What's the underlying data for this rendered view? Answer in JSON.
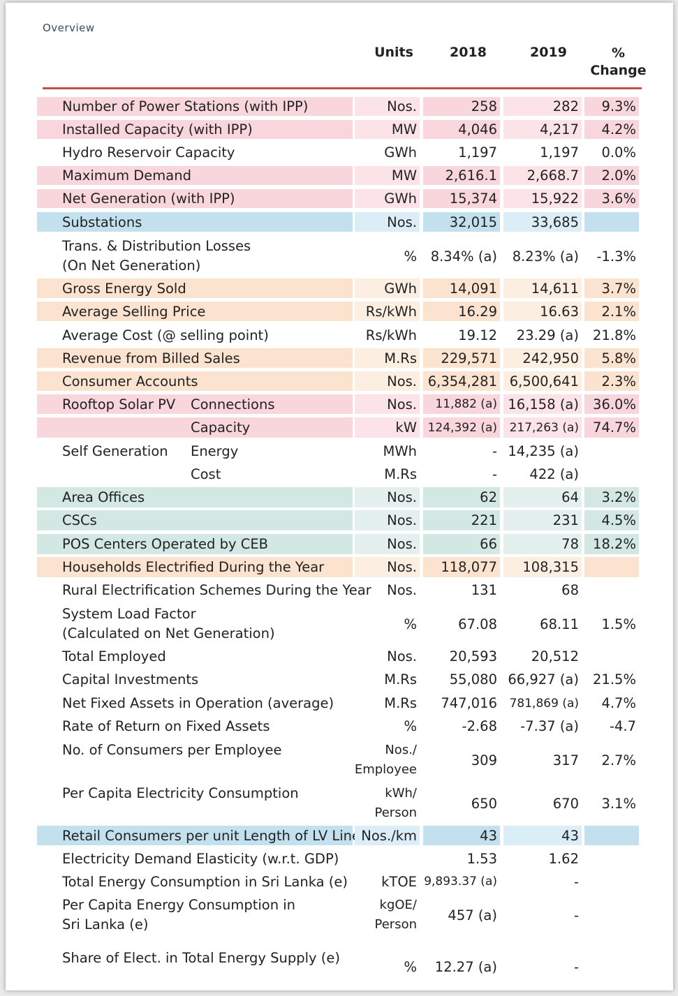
{
  "section_label": "Overview",
  "headers": {
    "units": "Units",
    "y2018": "2018",
    "y2019": "2019",
    "pct_line1": "%",
    "pct_line2": "Change"
  },
  "colors": {
    "pink": "#f9d6dc",
    "pink_light": "#fbe3e7",
    "blue": "#c3e0ee",
    "blue_light": "#dbeef7",
    "peach": "#fbe3cf",
    "peach_light": "#fdeee2",
    "teal": "#d3e7e3",
    "teal_light": "#e3f0ee",
    "rule": "#c0504d"
  },
  "rows": [
    {
      "label": "Number of Power Stations (with IPP)",
      "units": "Nos.",
      "v2018": "258",
      "v2019": "282",
      "pct": "9.3%"
    },
    {
      "label": "Installed Capacity (with IPP)",
      "units": "MW",
      "v2018": "4,046",
      "v2019": "4,217",
      "pct": "4.2%"
    },
    {
      "label": "Hydro Reservoir Capacity",
      "units": "GWh",
      "v2018": "1,197",
      "v2019": "1,197",
      "pct": "0.0%"
    },
    {
      "label": "Maximum Demand",
      "units": "MW",
      "v2018": "2,616.1",
      "v2019": "2,668.7",
      "pct": "2.0%"
    },
    {
      "label": "Net Generation (with IPP)",
      "units": "GWh",
      "v2018": "15,374",
      "v2019": "15,922",
      "pct": "3.6%"
    },
    {
      "label": "Substations",
      "units": "Nos.",
      "v2018": "32,015",
      "v2019": "33,685",
      "pct": ""
    },
    {
      "label": "Trans. & Distribution Losses",
      "label2": "(On Net Generation)",
      "units": "%",
      "v2018": "8.34% (a)",
      "v2019": "8.23% (a)",
      "pct": "-1.3%"
    },
    {
      "label": "Gross Energy Sold",
      "units": "GWh",
      "v2018": "14,091",
      "v2019": "14,611",
      "pct": "3.7%"
    },
    {
      "label": "Average Selling Price",
      "units": "Rs/kWh",
      "v2018": "16.29",
      "v2019": "16.63",
      "pct": "2.1%"
    },
    {
      "label": "Average Cost (@ selling point)",
      "units": "Rs/kWh",
      "v2018": "19.12",
      "v2019": "23.29 (a)",
      "pct": "21.8%"
    },
    {
      "label": "Revenue from Billed Sales",
      "units": "M.Rs",
      "v2018": "229,571",
      "v2019": "242,950",
      "pct": "5.8%"
    },
    {
      "label": "Consumer Accounts",
      "units": "Nos.",
      "v2018": "6,354,281",
      "v2019": "6,500,641",
      "pct": "2.3%"
    },
    {
      "label": "Rooftop Solar PV",
      "sub": "Connections",
      "units": "Nos.",
      "v2018": "11,882 (a)",
      "v2019": "16,158 (a)",
      "pct": "36.0%"
    },
    {
      "label": "",
      "sub": "Capacity",
      "units": "kW",
      "v2018": "124,392 (a)",
      "v2019": "217,263 (a)",
      "pct": "74.7%"
    },
    {
      "label": "Self Generation",
      "sub": "Energy",
      "units": "MWh",
      "v2018": "-",
      "v2019": "14,235 (a)",
      "pct": ""
    },
    {
      "label": "",
      "sub": "Cost",
      "units": "M.Rs",
      "v2018": "-",
      "v2019": "422 (a)",
      "pct": ""
    },
    {
      "label": "Area Offices",
      "units": "Nos.",
      "v2018": "62",
      "v2019": "64",
      "pct": "3.2%"
    },
    {
      "label": "CSCs",
      "units": "Nos.",
      "v2018": "221",
      "v2019": "231",
      "pct": "4.5%"
    },
    {
      "label": "POS Centers Operated by CEB",
      "units": "Nos.",
      "v2018": "66",
      "v2019": "78",
      "pct": "18.2%"
    },
    {
      "label": "Households Electrified During the Year",
      "units": "Nos.",
      "v2018": "118,077",
      "v2019": "108,315",
      "pct": ""
    },
    {
      "label": "Rural Electrification Schemes During the Year",
      "units": "Nos.",
      "v2018": "131",
      "v2019": "68",
      "pct": ""
    },
    {
      "label": "System Load Factor",
      "label2": "(Calculated on Net Generation)",
      "units": "%",
      "v2018": "67.08",
      "v2019": "68.11",
      "pct": "1.5%"
    },
    {
      "label": "Total Employed",
      "units": "Nos.",
      "v2018": "20,593",
      "v2019": "20,512",
      "pct": ""
    },
    {
      "label": "Capital Investments",
      "units": "M.Rs",
      "v2018": "55,080",
      "v2019": "66,927 (a)",
      "pct": "21.5%"
    },
    {
      "label": "Net Fixed Assets in Operation (average)",
      "units": "M.Rs",
      "v2018": "747,016",
      "v2019": "781,869 (a)",
      "pct": "4.7%"
    },
    {
      "label": "Rate of Return on Fixed Assets",
      "units": "%",
      "v2018": "-2.68",
      "v2019": "-7.37 (a)",
      "pct": "-4.7"
    },
    {
      "label": "No. of Consumers per Employee",
      "units": "Nos./",
      "units2": "Employee",
      "v2018": "309",
      "v2019": "317",
      "pct": "2.7%"
    },
    {
      "label": "Per Capita Electricity Consumption",
      "units": "kWh/",
      "units2": "Person",
      "v2018": "650",
      "v2019": "670",
      "pct": "3.1%"
    },
    {
      "label": "Retail Consumers per unit Length of LV Lines",
      "units": "Nos./km",
      "v2018": "43",
      "v2019": "43",
      "pct": ""
    },
    {
      "label": "Electricity Demand Elasticity (w.r.t. GDP)",
      "units": "",
      "v2018": "1.53",
      "v2019": "1.62",
      "pct": ""
    },
    {
      "label": "Total Energy Consumption in Sri Lanka (e)",
      "units": "kTOE",
      "v2018": "9,893.37 (a)",
      "v2019": "-",
      "pct": ""
    },
    {
      "label": "Per Capita Energy Consumption in",
      "label2": "Sri Lanka (e)",
      "units": "kgOE/",
      "units2": "Person",
      "v2018": "457 (a)",
      "v2019": "-",
      "pct": ""
    },
    {
      "label": "Share of Elect. in Total Energy Supply (e)",
      "units": "%",
      "v2018": "12.27 (a)",
      "v2019": "-",
      "pct": ""
    }
  ]
}
